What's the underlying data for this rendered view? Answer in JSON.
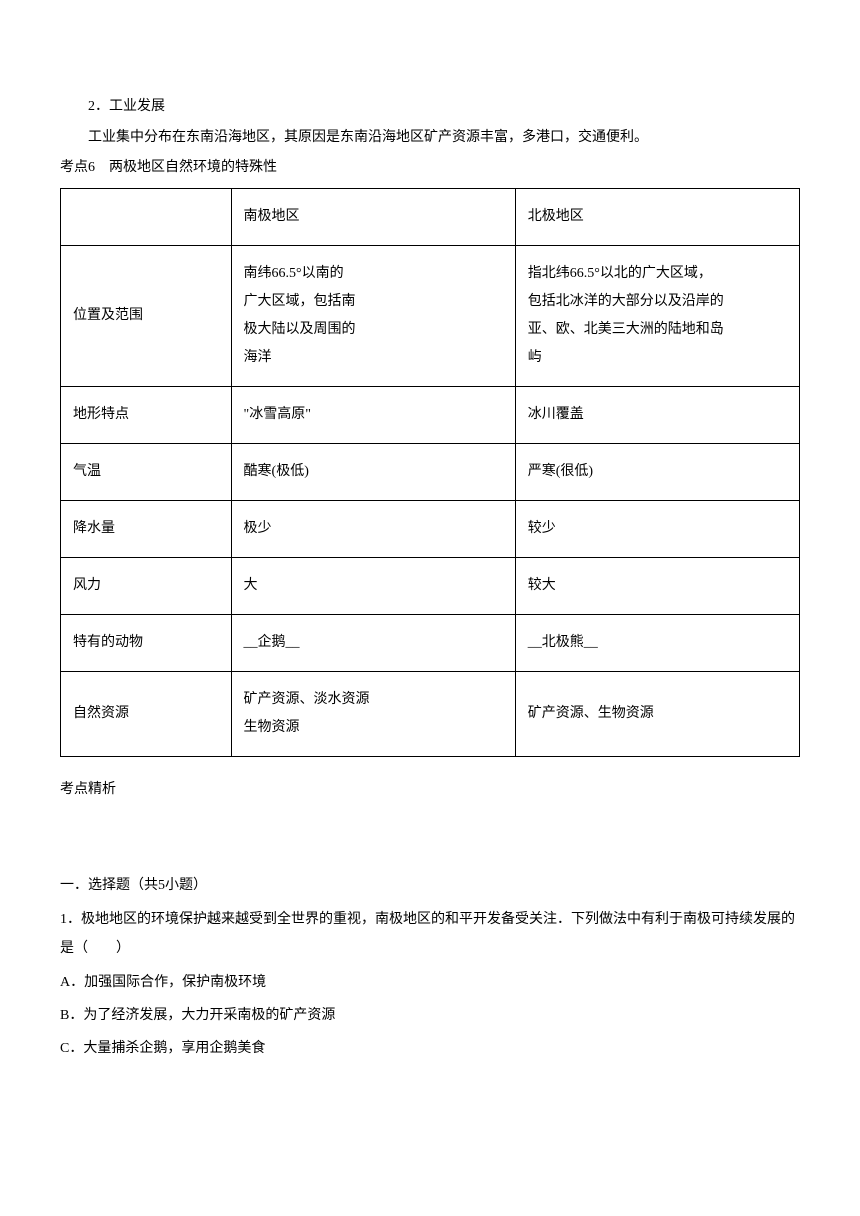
{
  "intro": {
    "line1": "2．工业发展",
    "line2": "工业集中分布在东南沿海地区，其原因是东南沿海地区矿产资源丰富，多港口，交通便利。"
  },
  "heading6": "考点6　两极地区自然环境的特殊性",
  "table": {
    "header": {
      "c1": "",
      "c2": "南极地区",
      "c3": "北极地区"
    },
    "rows": [
      {
        "c1": "位置及范围",
        "c2": "南纬66.5°以南的广大区域，包括南极大陆以及周围的海洋",
        "c3": "指北纬66.5°以北的广大区域，包括北冰洋的大部分以及沿岸的亚、欧、北美三大洲的陆地和岛屿"
      },
      {
        "c1": "地形特点",
        "c2": "\"冰雪高原\"",
        "c3": "冰川覆盖"
      },
      {
        "c1": "气温",
        "c2": "酷寒(极低)",
        "c3": "严寒(很低)"
      },
      {
        "c1": "降水量",
        "c2": "极少",
        "c3": "较少"
      },
      {
        "c1": "风力",
        "c2": "大",
        "c3": "较大"
      },
      {
        "c1": "特有的动物",
        "c2": "__企鹅__",
        "c3": "__北极熊__"
      },
      {
        "c1": "自然资源",
        "c2": "矿产资源、淡水资源生物资源",
        "c3": "矿产资源、生物资源"
      }
    ]
  },
  "analysis_heading": "考点精析",
  "quiz": {
    "section": "一．选择题（共5小题）",
    "q1": "1．极地地区的环境保护越来越受到全世界的重视，南极地区的和平开发备受关注．下列做法中有利于南极可持续发展的是（　　）",
    "optA": "A．加强国际合作，保护南极环境",
    "optB": "B．为了经济发展，大力开采南极的矿产资源",
    "optC": "C．大量捕杀企鹅，享用企鹅美食"
  }
}
